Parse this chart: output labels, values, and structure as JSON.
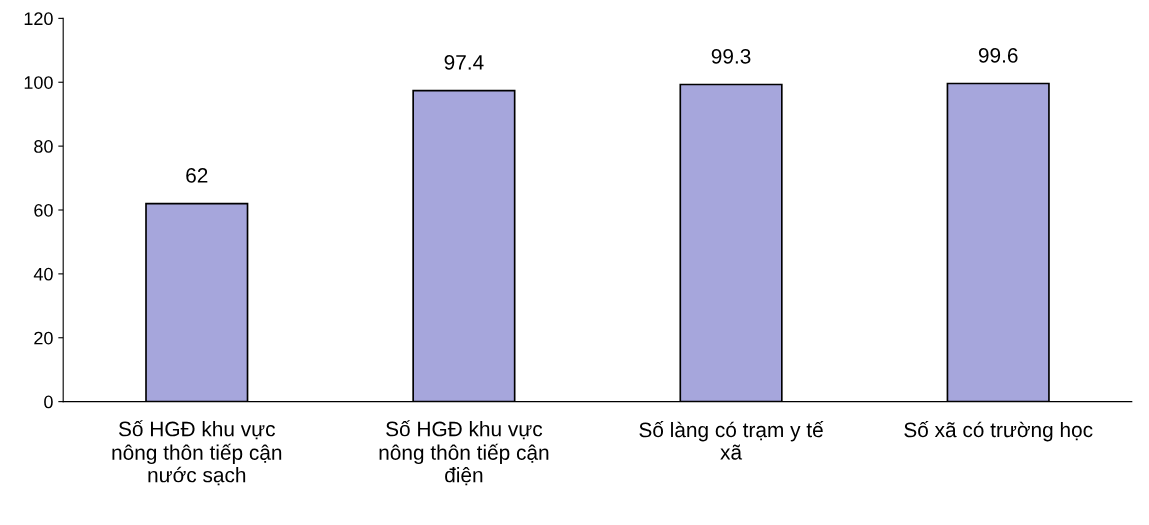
{
  "chart_data": {
    "type": "bar",
    "categories": [
      "Số HGĐ khu vực\nnông thôn tiếp cận\nnước sạch",
      "Số HGĐ khu vực\nnông thôn tiếp cận\nđiện",
      "Số làng có trạm y tế\nxã",
      "Số xã có trường học"
    ],
    "values": [
      62,
      97.4,
      99.3,
      99.6
    ],
    "color": "#a6a6dc",
    "ylim": [
      0,
      120
    ],
    "yticks": [
      0,
      20,
      40,
      60,
      80,
      100,
      120
    ],
    "data_labels": true,
    "grid": false,
    "legend": false
  }
}
